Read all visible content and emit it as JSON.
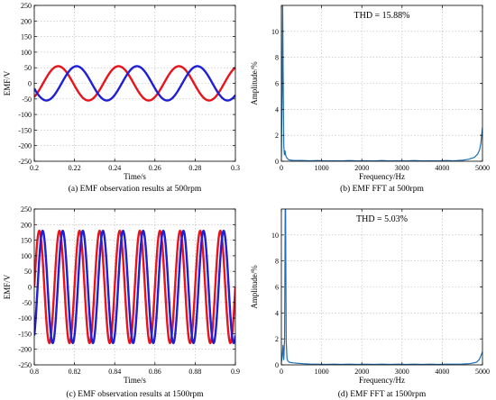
{
  "chart_data": [
    {
      "id": "a",
      "type": "line",
      "caption": "(a) EMF observation results at 500rpm",
      "xlabel": "Time/s",
      "ylabel": "EMF/V",
      "xlim": [
        0.2,
        0.3
      ],
      "ylim": [
        -250,
        250
      ],
      "xticks": [
        0.2,
        0.22,
        0.24,
        0.26,
        0.28,
        0.3
      ],
      "xticklabels": [
        "0.2",
        "0.22",
        "0.24",
        "0.26",
        "0.28",
        "0.3"
      ],
      "yticks": [
        -250,
        -200,
        -150,
        -100,
        -50,
        0,
        50,
        100,
        150,
        200,
        250
      ],
      "yticklabels": [
        "-250",
        "-200",
        "-150",
        "-100",
        "-50",
        "0",
        "50",
        "100",
        "150",
        "200",
        "250"
      ],
      "grid": true,
      "series": [
        {
          "color": "#e8141b",
          "amplitude": 55,
          "frequency_hz": 33.3,
          "phase_deg": 70
        },
        {
          "color": "#1f1fd6",
          "amplitude": 55,
          "frequency_hz": 33.3,
          "phase_deg": -40
        }
      ]
    },
    {
      "id": "b",
      "type": "line",
      "caption": "(b) EMF FFT at 500rpm",
      "xlabel": "Frequency/Hz",
      "ylabel": "Amplitude/%",
      "annotation": "THD = 15.88%",
      "xlim": [
        0,
        5000
      ],
      "ylim": [
        0,
        12
      ],
      "xticks": [
        0,
        1000,
        2000,
        3000,
        4000,
        5000
      ],
      "xticklabels": [
        "0",
        "1000",
        "2000",
        "3000",
        "4000",
        "5000"
      ],
      "yticks": [
        0,
        2,
        4,
        6,
        8,
        10
      ],
      "yticklabels": [
        "0",
        "2",
        "4",
        "6",
        "8",
        "10"
      ],
      "grid": true,
      "series": [
        {
          "color": "#1f6fb2",
          "x": [
            0,
            20,
            33,
            45,
            60,
            75,
            90,
            110,
            140,
            180,
            250,
            350,
            500,
            700,
            900,
            1100,
            1300,
            1500,
            1700,
            1900,
            2100,
            2300,
            2500,
            2700,
            2900,
            3100,
            3300,
            3500,
            3700,
            3900,
            4100,
            4300,
            4500,
            4650,
            4800,
            4880,
            4930,
            4960,
            4980,
            5000
          ],
          "y": [
            0.3,
            5.5,
            12,
            6.5,
            1.2,
            0.5,
            0.8,
            0.4,
            0.25,
            0.12,
            0.08,
            0.05,
            0.06,
            0.04,
            0.05,
            0.03,
            0.04,
            0.03,
            0.05,
            0.03,
            0.04,
            0.03,
            0.05,
            0.03,
            0.04,
            0.03,
            0.05,
            0.03,
            0.04,
            0.03,
            0.05,
            0.04,
            0.08,
            0.15,
            0.3,
            0.55,
            0.9,
            1.4,
            2.0,
            2.6
          ]
        }
      ]
    },
    {
      "id": "c",
      "type": "line",
      "caption": "(c) EMF observation results at 1500rpm",
      "xlabel": "Time/s",
      "ylabel": "EMF/V",
      "xlim": [
        0.8,
        0.9
      ],
      "ylim": [
        -250,
        250
      ],
      "xticks": [
        0.8,
        0.82,
        0.84,
        0.86,
        0.88,
        0.9
      ],
      "xticklabels": [
        "0.8",
        "0.82",
        "0.84",
        "0.86",
        "0.88",
        "0.9"
      ],
      "yticks": [
        -250,
        -200,
        -150,
        -100,
        -50,
        0,
        50,
        100,
        150,
        200,
        250
      ],
      "yticklabels": [
        "-250",
        "-200",
        "-150",
        "-100",
        "-50",
        "0",
        "50",
        "100",
        "150",
        "200",
        "250"
      ],
      "grid": true,
      "series": [
        {
          "color": "#e8141b",
          "amplitude": 180,
          "frequency_hz": 100,
          "phase_deg": 0
        },
        {
          "color": "#1f1fd6",
          "amplitude": 180,
          "frequency_hz": 100,
          "phase_deg": -60
        }
      ]
    },
    {
      "id": "d",
      "type": "line",
      "caption": "(d) EMF FFT at 1500rpm",
      "xlabel": "Frequency/Hz",
      "ylabel": "Amplitude/%",
      "annotation": "THD = 5.03%",
      "xlim": [
        0,
        5000
      ],
      "ylim": [
        0,
        12
      ],
      "xticks": [
        0,
        1000,
        2000,
        3000,
        4000,
        5000
      ],
      "xticklabels": [
        "0",
        "1000",
        "2000",
        "3000",
        "4000",
        "5000"
      ],
      "yticks": [
        0,
        2,
        4,
        6,
        8,
        10
      ],
      "yticklabels": [
        "0",
        "2",
        "4",
        "6",
        "8",
        "10"
      ],
      "grid": true,
      "series": [
        {
          "color": "#1f6fb2",
          "x": [
            0,
            20,
            40,
            60,
            80,
            95,
            100,
            105,
            120,
            140,
            160,
            200,
            300,
            400,
            500,
            700,
            900,
            1100,
            1300,
            1500,
            1700,
            1900,
            2100,
            2300,
            2500,
            2700,
            2900,
            3100,
            3300,
            3500,
            3700,
            3900,
            4100,
            4300,
            4500,
            4700,
            4850,
            4920,
            4960,
            5000
          ],
          "y": [
            0.2,
            0.6,
            1.5,
            0.4,
            2.0,
            12,
            12,
            12,
            1.8,
            0.5,
            0.3,
            0.2,
            0.15,
            0.12,
            0.1,
            0.06,
            0.05,
            0.04,
            0.05,
            0.04,
            0.05,
            0.04,
            0.05,
            0.04,
            0.05,
            0.04,
            0.05,
            0.04,
            0.05,
            0.04,
            0.05,
            0.04,
            0.05,
            0.05,
            0.06,
            0.1,
            0.2,
            0.4,
            0.7,
            1.0
          ]
        }
      ]
    }
  ]
}
